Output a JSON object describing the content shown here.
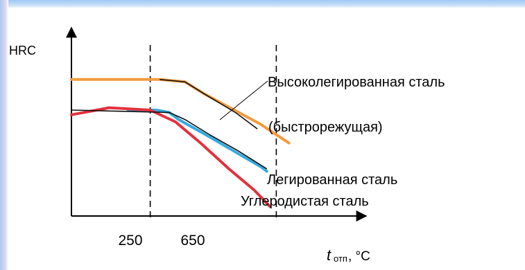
{
  "chart_data": {
    "type": "line",
    "ylabel": "HRC",
    "xlabel_main": "t",
    "xlabel_sub": "отп",
    "xlabel_unit": ", °C",
    "xticks": [
      "250",
      "650"
    ],
    "annotations": [
      "(быстрорежущая)"
    ],
    "series": [
      {
        "name": "Высоколегированная сталь",
        "color": "#f39a3c",
        "points": [
          [
            0,
            2.9
          ],
          [
            280,
            2.9
          ],
          [
            360,
            2.85
          ],
          [
            420,
            2.6
          ],
          [
            600,
            1.95
          ],
          [
            690,
            1.55
          ]
        ]
      },
      {
        "name": "Легированная сталь",
        "color": "#36a9df",
        "points": [
          [
            180,
            2.25
          ],
          [
            270,
            2.25
          ],
          [
            310,
            2.2
          ],
          [
            340,
            2.05
          ],
          [
            420,
            1.75
          ],
          [
            510,
            1.4
          ],
          [
            600,
            1.05
          ],
          [
            620,
            0.95
          ]
        ]
      },
      {
        "name": "Углеродистая сталь",
        "color": "#e2323c",
        "points": [
          [
            0,
            2.15
          ],
          [
            120,
            2.3
          ],
          [
            250,
            2.25
          ],
          [
            330,
            2.0
          ],
          [
            410,
            1.55
          ],
          [
            500,
            1.0
          ],
          [
            580,
            0.55
          ],
          [
            630,
            0.2
          ]
        ]
      }
    ],
    "black_overlay": [
      [
        [
          280,
          2.9
        ],
        [
          360,
          2.85
        ],
        [
          420,
          2.6
        ],
        [
          520,
          2.2
        ],
        [
          590,
          1.85
        ]
      ],
      [
        [
          0,
          2.25
        ],
        [
          310,
          2.2
        ],
        [
          360,
          2.05
        ],
        [
          440,
          1.72
        ],
        [
          530,
          1.38
        ],
        [
          620,
          1.0
        ]
      ]
    ],
    "dashed_lines_x": [
      250,
      650
    ],
    "xlim": [
      0,
      900
    ],
    "ylim": [
      0,
      4
    ]
  }
}
